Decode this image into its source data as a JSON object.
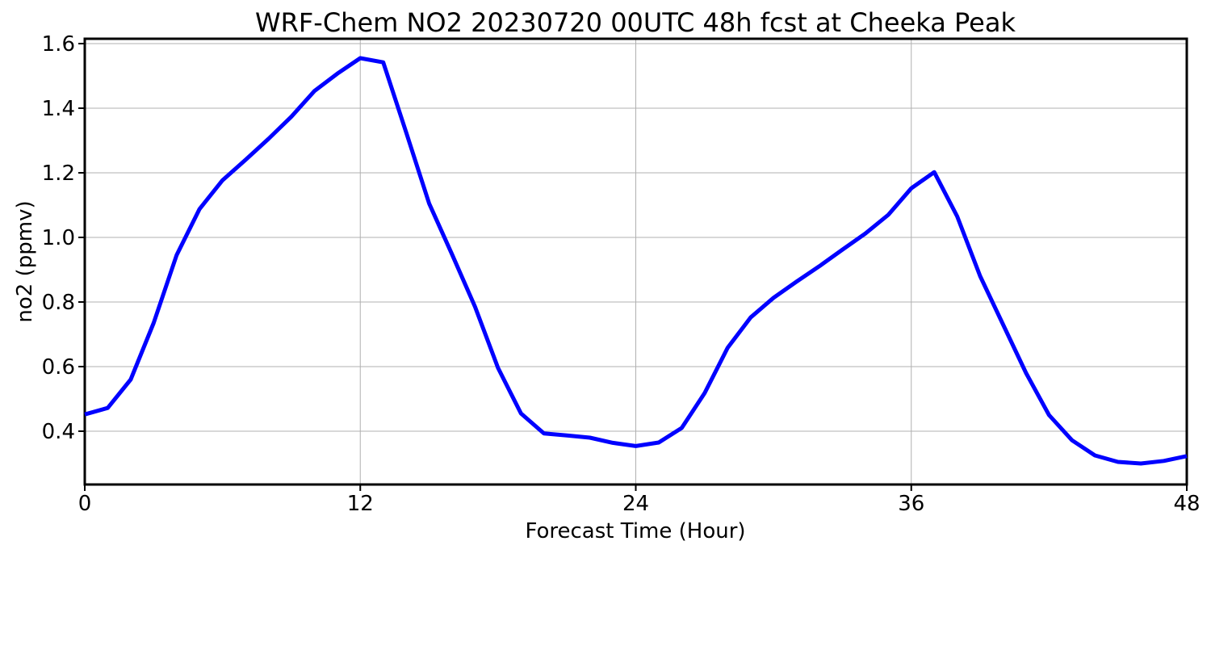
{
  "chart_data": {
    "type": "line",
    "title": "WRF-Chem NO2  20230720 00UTC 48h fcst at Cheeka Peak",
    "xlabel": "Forecast Time (Hour)",
    "ylabel": "no2  (ppmv)",
    "xlim": [
      0,
      48
    ],
    "ylim": [
      0.235,
      1.615
    ],
    "xticks": [
      0,
      12,
      24,
      36,
      48
    ],
    "yticks": [
      0.4,
      0.6,
      0.8,
      1.0,
      1.2,
      1.4,
      1.6
    ],
    "ytick_labels": [
      "0.4",
      "0.6",
      "0.8",
      "1.0",
      "1.2",
      "1.4",
      "1.6"
    ],
    "grid": true,
    "legend": false,
    "x": [
      0,
      1,
      2,
      3,
      4,
      5,
      6,
      7,
      8,
      9,
      10,
      11,
      12,
      13,
      14,
      15,
      16,
      17,
      18,
      19,
      20,
      21,
      22,
      23,
      24,
      25,
      26,
      27,
      28,
      29,
      30,
      31,
      32,
      33,
      34,
      35,
      36,
      37,
      38,
      39,
      40,
      41,
      42,
      43,
      44,
      45,
      46,
      47,
      48
    ],
    "series": [
      {
        "color": "#0000ff",
        "values": [
          0.452,
          0.472,
          0.56,
          0.735,
          0.945,
          1.088,
          1.177,
          1.24,
          1.305,
          1.374,
          1.453,
          1.507,
          1.555,
          1.542,
          1.325,
          1.105,
          0.947,
          0.785,
          0.596,
          0.455,
          0.393,
          0.387,
          0.38,
          0.364,
          0.354,
          0.365,
          0.41,
          0.518,
          0.658,
          0.752,
          0.813,
          0.863,
          0.911,
          0.962,
          1.012,
          1.07,
          1.152,
          1.202,
          1.065,
          0.88,
          0.73,
          0.58,
          0.45,
          0.372,
          0.325,
          0.305,
          0.3,
          0.308,
          0.323
        ]
      }
    ]
  }
}
